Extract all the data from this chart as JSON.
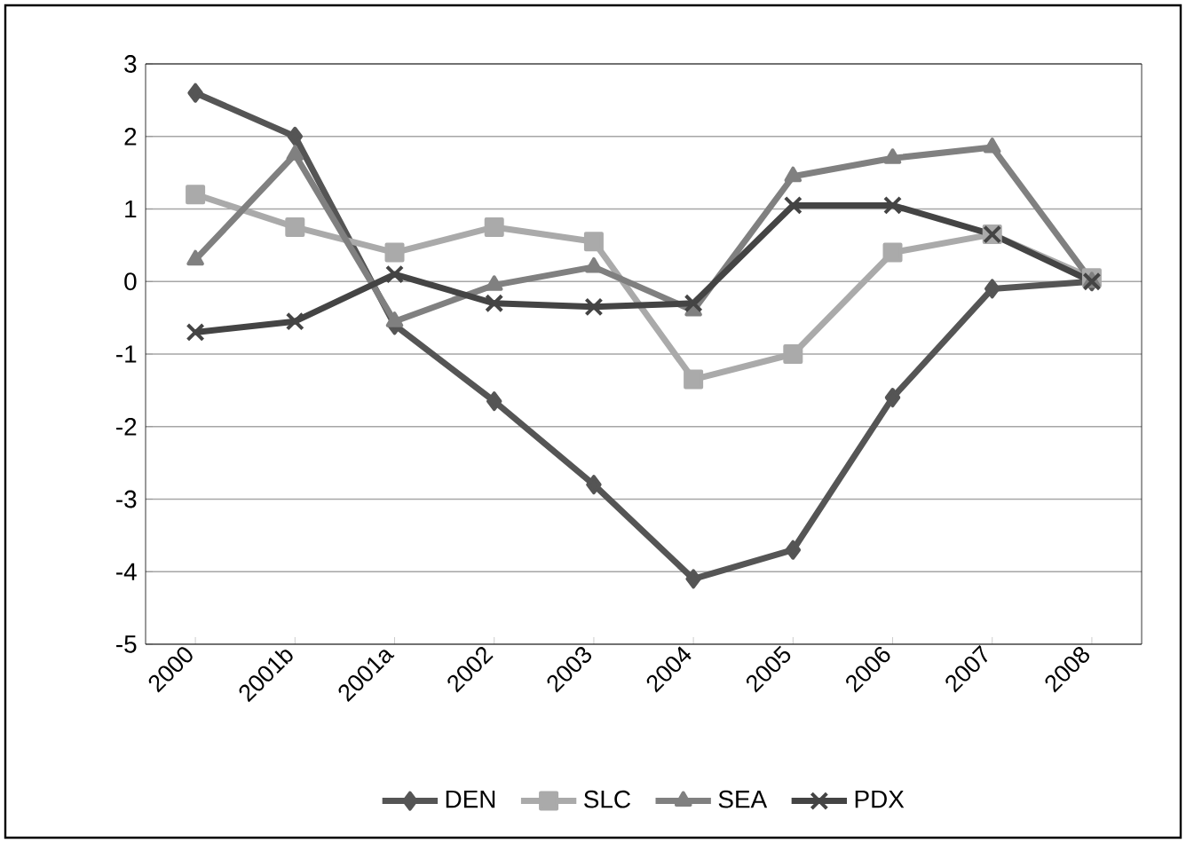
{
  "chart_data": {
    "type": "line",
    "categories": [
      "2000",
      "2001b",
      "2001a",
      "2002",
      "2003",
      "2004",
      "2005",
      "2006",
      "2007",
      "2008"
    ],
    "series": [
      {
        "name": "DEN",
        "color": "#555555",
        "marker": "diamond",
        "values": [
          2.6,
          2.0,
          -0.6,
          -1.65,
          -2.8,
          -4.1,
          -3.7,
          -1.6,
          -0.1,
          0
        ]
      },
      {
        "name": "SLC",
        "color": "#aaaaaa",
        "marker": "square",
        "values": [
          1.2,
          0.75,
          0.4,
          0.75,
          0.55,
          -1.35,
          -1.0,
          0.4,
          0.65,
          0.05
        ]
      },
      {
        "name": "SEA",
        "color": "#808080",
        "marker": "triangle",
        "values": [
          0.3,
          1.75,
          -0.55,
          -0.05,
          0.2,
          -0.4,
          1.45,
          1.7,
          1.85,
          0
        ]
      },
      {
        "name": "PDX",
        "color": "#444444",
        "marker": "cross",
        "values": [
          -0.7,
          -0.55,
          0.1,
          -0.3,
          -0.35,
          -0.3,
          1.05,
          1.05,
          0.65,
          0
        ]
      }
    ],
    "ylim": [
      -5,
      3
    ],
    "yticks": [
      -5,
      -4,
      -3,
      -2,
      -1,
      0,
      1,
      2,
      3
    ],
    "grid": "y",
    "legend": "bottom",
    "line_style": "solid"
  }
}
